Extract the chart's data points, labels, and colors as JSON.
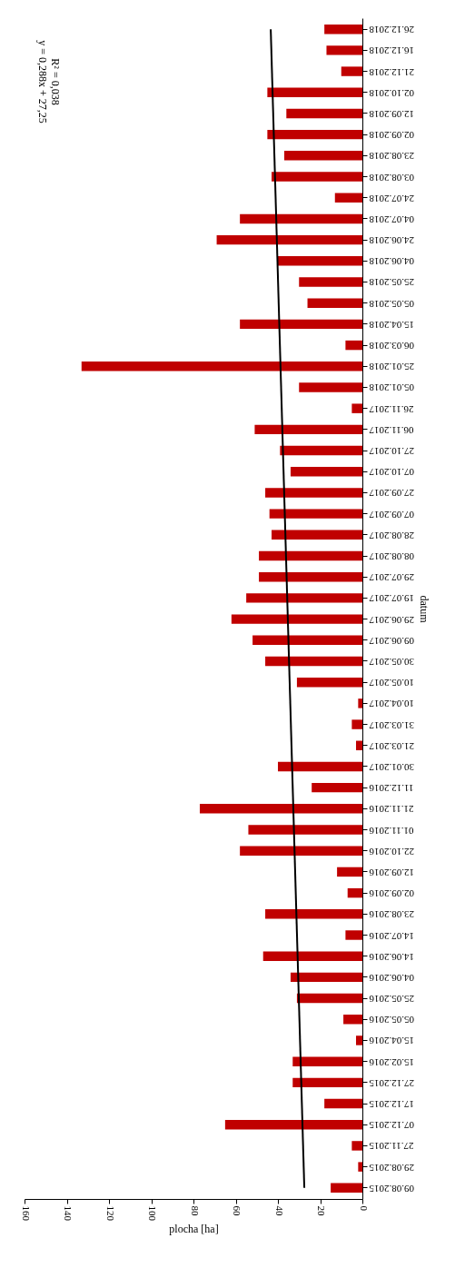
{
  "chart_data": {
    "type": "bar",
    "orientation": "horizontal",
    "xlabel": "plocha [ha]",
    "ylabel": "datum",
    "categories": [
      "26.12.2018",
      "16.12.2018",
      "21.12.2018",
      "02.10.2018",
      "12.09.2018",
      "02.09.2018",
      "23.08.2018",
      "03.08.2018",
      "24.07.2018",
      "04.07.2018",
      "24.06.2018",
      "04.06.2018",
      "25.05.2018",
      "05.05.2018",
      "15.04.2018",
      "06.03.2018",
      "25.01.2018",
      "05.01.2018",
      "26.11.2017",
      "06.11.2017",
      "27.10.2017",
      "07.10.2017",
      "27.09.2017",
      "07.09.2017",
      "28.08.2017",
      "08.08.2017",
      "29.07.2017",
      "19.07.2017",
      "29.06.2017",
      "09.06.2017",
      "30.05.2017",
      "10.05.2017",
      "10.04.2017",
      "31.03.2017",
      "21.03.2017",
      "30.01.2017",
      "11.12.2016",
      "21.11.2016",
      "01.11.2016",
      "22.10.2016",
      "12.09.2016",
      "02.09.2016",
      "23.08.2016",
      "14.07.2016",
      "14.06.2016",
      "04.06.2016",
      "25.05.2016",
      "05.05.2016",
      "15.04.2016",
      "15.02.2016",
      "27.12.2015",
      "17.12.2015",
      "07.12.2015",
      "27.11.2015",
      "29.08.2015",
      "09.08.2015"
    ],
    "series": [
      {
        "color": "#c00000",
        "values": [
          18,
          17,
          10,
          45,
          36,
          45,
          37,
          43,
          13,
          58,
          69,
          40,
          30,
          26,
          58,
          8,
          133,
          30,
          5,
          51,
          39,
          34,
          46,
          44,
          43,
          49,
          49,
          55,
          62,
          52,
          46,
          31,
          2,
          5,
          3,
          40,
          24,
          77,
          54,
          58,
          12,
          7,
          46,
          8,
          47,
          34,
          31,
          9,
          3,
          33,
          33,
          18,
          65,
          5,
          2,
          15
        ]
      },
      {
        "type": "line",
        "color": "#000000",
        "x": [
          "09.08.2015",
          "26.12.2018"
        ],
        "values": [
          27.5,
          43.4
        ]
      }
    ],
    "xlim": [
      160,
      0
    ],
    "xticks": [
      160,
      140,
      120,
      100,
      80,
      60,
      40,
      20,
      0
    ],
    "annotations": [
      "y = 0,288x + 27,25",
      "R² = 0,038"
    ],
    "grid": false
  }
}
